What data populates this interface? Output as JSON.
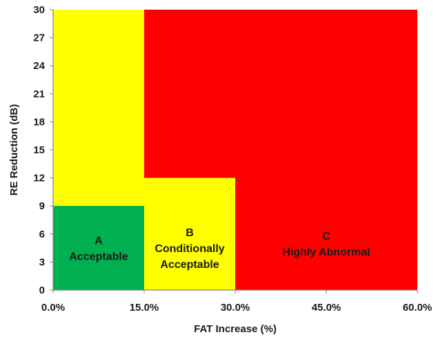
{
  "chart_data": {
    "type": "area",
    "title": "",
    "xlabel": "FAT Increase (%)",
    "ylabel": "RE Reduction (dB)",
    "xlim": [
      0,
      60
    ],
    "ylim": [
      0,
      30
    ],
    "x_ticks": [
      {
        "value": 0,
        "label": "0.0%"
      },
      {
        "value": 15,
        "label": "15.0%"
      },
      {
        "value": 30,
        "label": "30.0%"
      },
      {
        "value": 45,
        "label": "45.0%"
      },
      {
        "value": 60,
        "label": "60.0%"
      }
    ],
    "y_ticks": [
      {
        "value": 0,
        "label": "0"
      },
      {
        "value": 3,
        "label": "3"
      },
      {
        "value": 6,
        "label": "6"
      },
      {
        "value": 9,
        "label": "9"
      },
      {
        "value": 12,
        "label": "12"
      },
      {
        "value": 15,
        "label": "15"
      },
      {
        "value": 18,
        "label": "18"
      },
      {
        "value": 21,
        "label": "21"
      },
      {
        "value": 24,
        "label": "24"
      },
      {
        "value": 27,
        "label": "27"
      },
      {
        "value": 30,
        "label": "30"
      }
    ],
    "grid": false,
    "regions": [
      {
        "id": "red",
        "color": "#ff0000",
        "x0": 0,
        "x1": 60,
        "y0": 0,
        "y1": 30
      },
      {
        "id": "yellow-left",
        "color": "#ffff00",
        "x0": 0,
        "x1": 15,
        "y0": 0,
        "y1": 30
      },
      {
        "id": "yellow-mid",
        "color": "#ffff00",
        "x0": 15,
        "x1": 30,
        "y0": 0,
        "y1": 12
      },
      {
        "id": "green",
        "color": "#00b050",
        "x0": 0,
        "x1": 15,
        "y0": 0,
        "y1": 9
      }
    ],
    "zone_labels": [
      {
        "id": "zone-a",
        "x": 7.5,
        "y": 4.5,
        "lines": [
          "A",
          "Acceptable"
        ]
      },
      {
        "id": "zone-b",
        "x": 22.5,
        "y": 4.5,
        "lines": [
          "B",
          "Conditionally",
          "Acceptable"
        ]
      },
      {
        "id": "zone-c",
        "x": 45,
        "y": 5.0,
        "lines": [
          "C",
          "Highly Abnormal"
        ]
      }
    ],
    "colors": {
      "green": "#00b050",
      "yellow": "#ffff00",
      "red": "#ff0000",
      "axis": "#808080",
      "text": "#1a1a1a"
    }
  }
}
